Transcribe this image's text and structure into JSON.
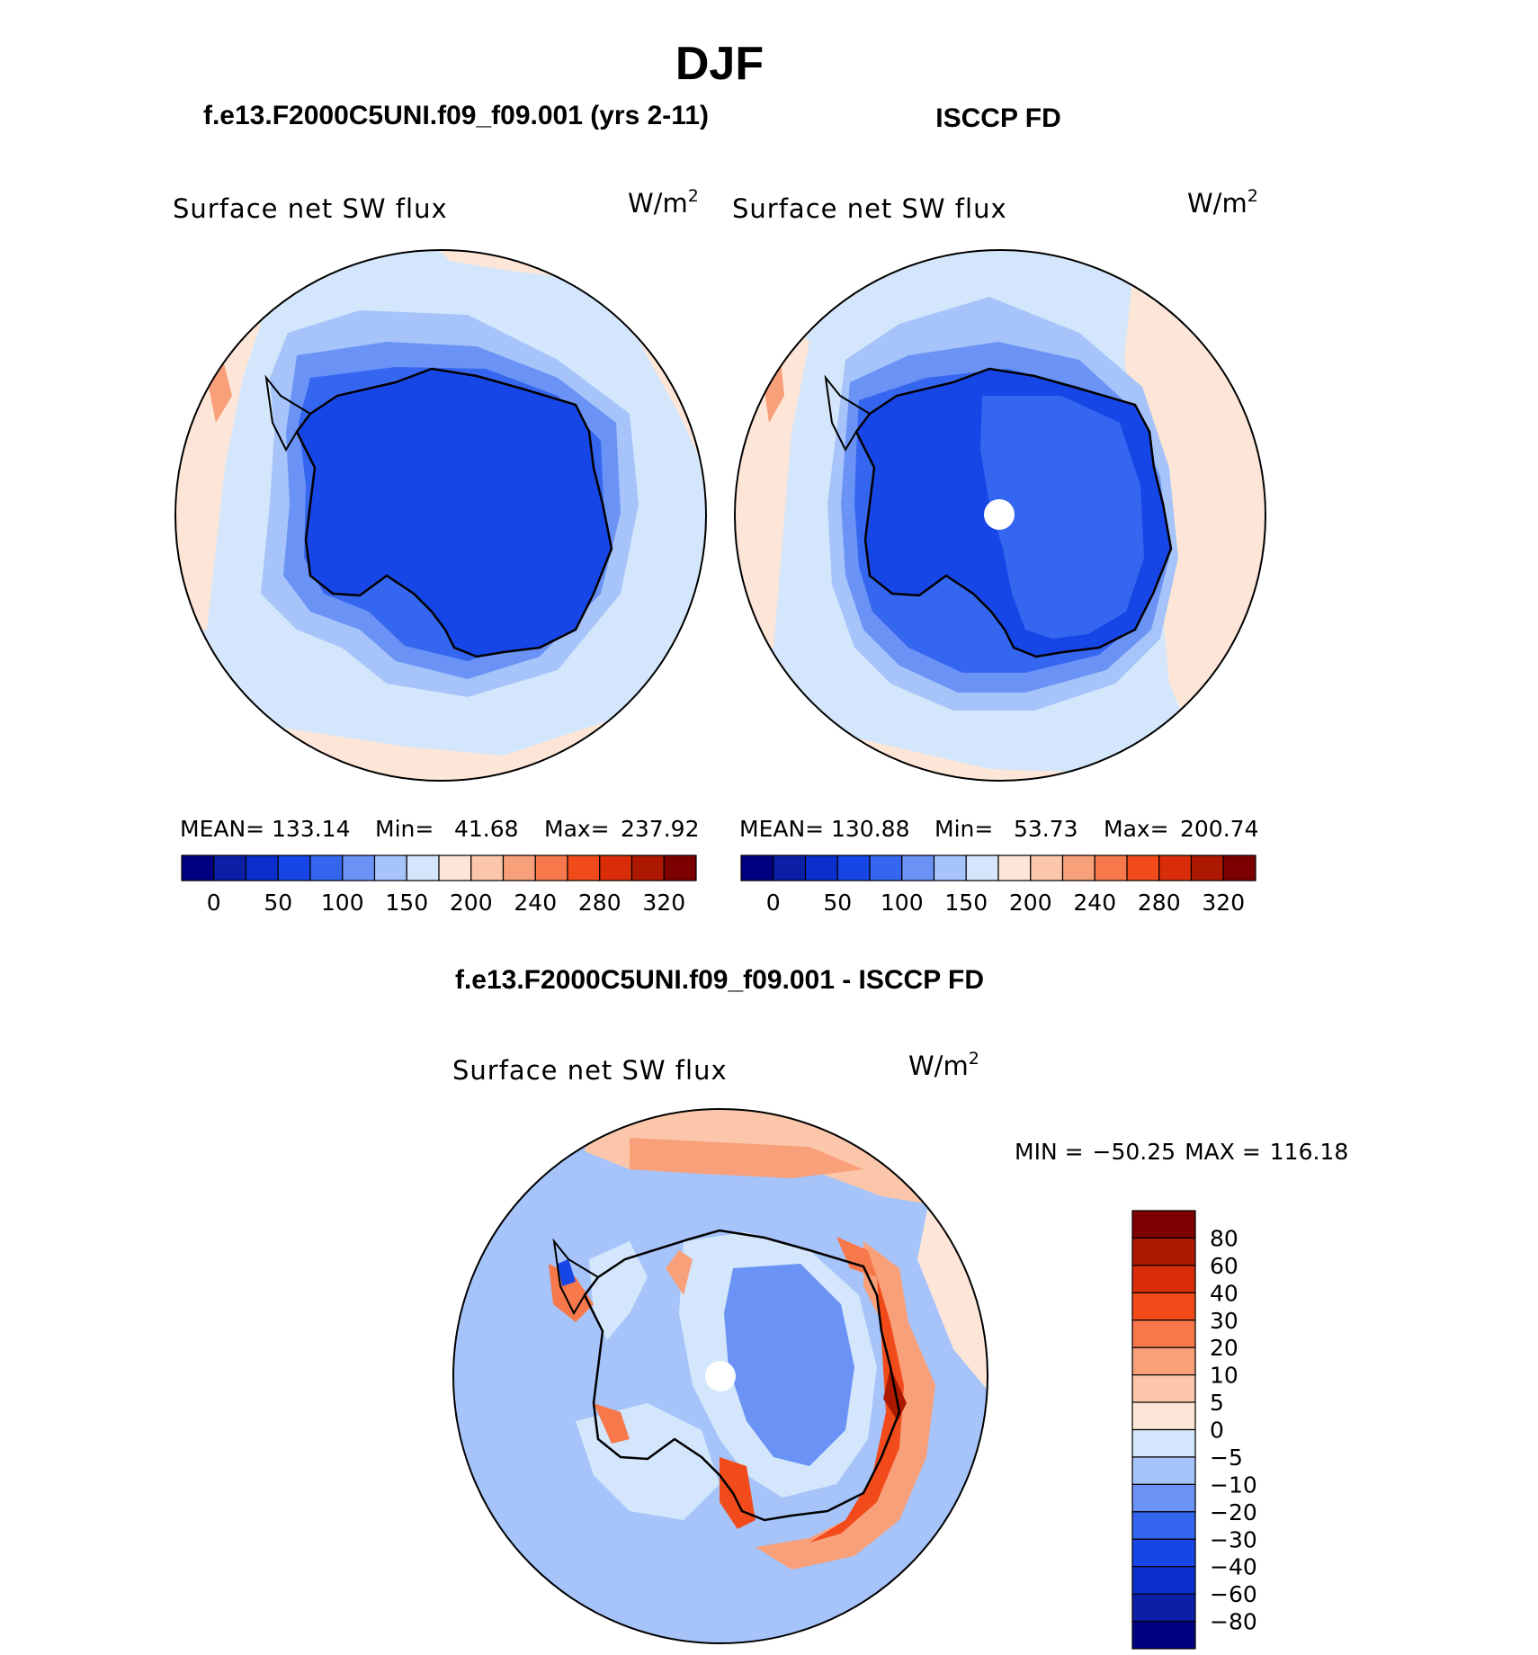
{
  "page_title": "DJF",
  "colors": {
    "absolute_scale": [
      "#000080",
      "#0a1fa6",
      "#0b2fcc",
      "#1746e6",
      "#3566f0",
      "#6a93f5",
      "#a6c4fa",
      "#d3e6fb",
      "#fde6d8",
      "#fbc6a9",
      "#f8a07a",
      "#f7784a",
      "#f14b1b",
      "#d92d0a",
      "#ad1900",
      "#7d0000"
    ],
    "difference_scale": [
      "#000080",
      "#0a1fa6",
      "#0b2fcc",
      "#1746e6",
      "#3566f0",
      "#6a93f5",
      "#a6c4fa",
      "#d3e6fb",
      "#fde6d8",
      "#fbc6a9",
      "#f8a07a",
      "#f7784a",
      "#f14b1b",
      "#d92d0a",
      "#ad1900",
      "#7d0000"
    ]
  },
  "chart_data": [
    {
      "type": "heatmap",
      "projection": "south-polar-stereographic",
      "case_title": "f.e13.F2000C5UNI.f09_f09.001 (yrs 2-11)",
      "variable": "Surface net SW flux",
      "units": "W/m",
      "units_exp": "2",
      "stats": {
        "mean_label": "MEAN=",
        "mean": "133.14",
        "min_label": "Min=",
        "min": "41.68",
        "max_label": "Max=",
        "max": "237.92"
      },
      "colorbar_levels": [
        "0",
        "50",
        "100",
        "150",
        "200",
        "240",
        "280",
        "320"
      ],
      "legend_placement": "bottom"
    },
    {
      "type": "heatmap",
      "projection": "south-polar-stereographic",
      "case_title": "ISCCP FD",
      "variable": "Surface net SW flux",
      "units": "W/m",
      "units_exp": "2",
      "stats": {
        "mean_label": "MEAN=",
        "mean": "130.88",
        "min_label": "Min=",
        "min": "53.73",
        "max_label": "Max=",
        "max": "200.74"
      },
      "colorbar_levels": [
        "0",
        "50",
        "100",
        "150",
        "200",
        "240",
        "280",
        "320"
      ],
      "legend_placement": "bottom"
    },
    {
      "type": "heatmap",
      "projection": "south-polar-stereographic",
      "case_title": "f.e13.F2000C5UNI.f09_f09.001 - ISCCP FD",
      "variable": "Surface net SW flux",
      "units": "W/m",
      "units_exp": "2",
      "stats": {
        "min_label": "MIN =",
        "min": "−50.25",
        "max_label": "MAX =",
        "max": "116.18"
      },
      "colorbar_levels": [
        "80",
        "60",
        "40",
        "30",
        "20",
        "10",
        "5",
        "0",
        "−5",
        "−10",
        "−20",
        "−30",
        "−40",
        "−60",
        "−80"
      ],
      "legend_placement": "right"
    }
  ]
}
